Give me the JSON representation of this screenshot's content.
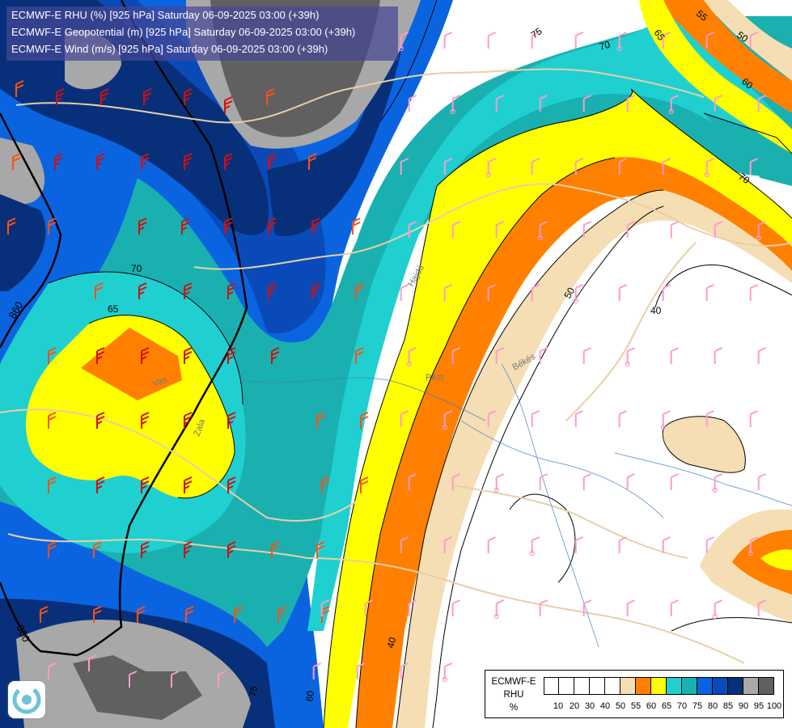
{
  "header": {
    "line1": "ECMWF-E RHU (%) [925 hPa] Saturday 06-09-2025 03:00 (+39h)",
    "line2": "ECMWF-E Geopotential (m) [925 hPa] Saturday 06-09-2025 03:00 (+39h)",
    "line3": "ECMWF-E Wind (m/s) [925 hPa] Saturday 06-09-2025 03:00 (+39h)"
  },
  "legend": {
    "model": "ECMWF-E",
    "variable": "RHU",
    "unit": "%",
    "colors": [
      "#ffffff",
      "#ffffff",
      "#ffffff",
      "#ffffff",
      "#ffffff",
      "#f5deb3",
      "#ff8000",
      "#ffff00",
      "#20d0d0",
      "#1ab0b0",
      "#0a64e0",
      "#0a4ab8",
      "#08307a",
      "#a8a8a8",
      "#606060"
    ],
    "ticks": [
      "10",
      "20",
      "30",
      "40",
      "50",
      "55",
      "60",
      "65",
      "70",
      "75",
      "80",
      "85",
      "90",
      "95",
      "100"
    ]
  },
  "contour_labels": {
    "rhu": [
      "75",
      "70",
      "65",
      "55",
      "50",
      "60",
      "70",
      "70",
      "65",
      "50",
      "40",
      "40",
      "75",
      "60"
    ],
    "geopotential": [
      "860",
      "860"
    ]
  },
  "place_labels": [
    "Hajdú",
    "Pest",
    "Békés",
    "Vas",
    "Zala"
  ],
  "icons": {
    "logo": "cyclone-logo-icon",
    "wind_barb": "wind-barb-icon"
  },
  "brand_colors": {
    "wind_barb_high": "#d01010",
    "wind_barb_mid": "#ff5010",
    "wind_barb_low": "#ff9acb",
    "border_line": "#e0c8a8",
    "contour": "#000000"
  }
}
